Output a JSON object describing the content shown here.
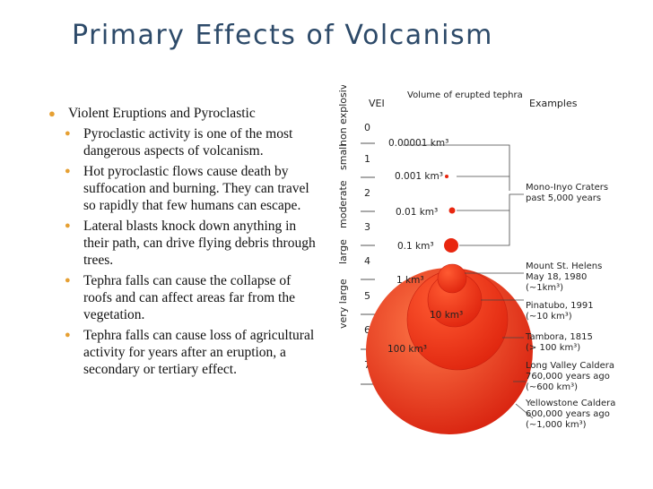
{
  "slide": {
    "title": "Primary Effects of Volcanism",
    "bullet_main": "Violent Eruptions and Pyroclastic",
    "sub_bullets": [
      "Pyroclastic activity is one of the most dangerous aspects of volcanism.",
      "Hot pyroclastic flows cause death by suffocation and burning.  They can travel so rapidly that few humans can escape.",
      "Lateral blasts knock down anything in their path, can drive flying debris through trees.",
      "Tephra falls can cause the collapse of roofs and can affect areas far from the vegetation.",
      "Tephra falls can cause loss of agricultural activity for years after an eruption, a secondary or tertiary effect."
    ]
  },
  "diagram": {
    "header_vei": "VEI",
    "header_volume": "Volume of erupted tephra",
    "header_examples": "Examples",
    "categories": [
      "non explosive",
      "small",
      "moderate",
      "large",
      "very large"
    ],
    "vei_levels": [
      "0",
      "1",
      "2",
      "3",
      "4",
      "5",
      "6",
      "7"
    ],
    "volume_labels": [
      "0.00001 km³",
      "0.001 km³",
      "0.01 km³",
      "0.1 km³",
      "1 km³",
      "10 km³",
      "100 km³"
    ],
    "examples": [
      "Mono-Inyo Craters past 5,000 years",
      "Mount St. Helens May 18, 1980 (~1km³)",
      "Pinatubo, 1991 (~10 km³)",
      "Tambora, 1815 (> 100 km³)",
      "Long Valley Caldera 760,000 years ago (~600 km³)",
      "Yellowstone Caldera 600,000 years ago (~1,000 km³)"
    ],
    "colors": {
      "sphere_bright": "#ff6a3a",
      "sphere_mid": "#e82410",
      "sphere_dark": "#c01e0d",
      "bullet": "#e6a033",
      "title": "#2d4a69"
    }
  }
}
